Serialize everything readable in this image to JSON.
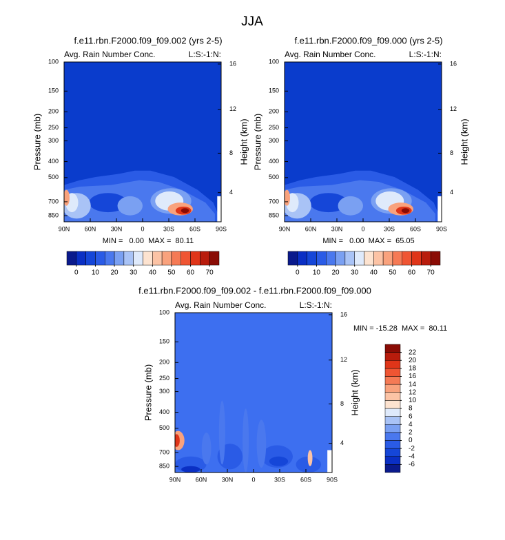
{
  "title": "JJA",
  "panels": [
    {
      "title": "f.e11.rbn.F2000.f09_f09.002 (yrs 2-5)",
      "left_label": "Avg. Rain Number Conc.",
      "right_label": "L:S:-1:N:",
      "y_label": "Pressure (mb)",
      "y2_label": "Height (km)",
      "ylim": [
        100,
        925
      ],
      "yticks": [
        100,
        150,
        200,
        250,
        300,
        400,
        500,
        700,
        850
      ],
      "y2ticks": [
        4,
        8,
        12,
        16
      ],
      "xlim": [
        90,
        -90
      ],
      "xticks": [
        {
          "value": 90,
          "label": "90N"
        },
        {
          "value": 60,
          "label": "60N"
        },
        {
          "value": 30,
          "label": "30N"
        },
        {
          "value": 0,
          "label": "0"
        },
        {
          "value": -30,
          "label": "30S"
        },
        {
          "value": -60,
          "label": "60S"
        },
        {
          "value": -90,
          "label": "90S"
        }
      ],
      "stats": "MIN =   0.00  MAX =  80.11",
      "colorbar": {
        "orientation": "horizontal",
        "range": [
          -5,
          75
        ],
        "ticks": [
          0,
          10,
          20,
          30,
          40,
          50,
          60,
          70
        ],
        "colors": [
          "#0a1a8c",
          "#0a2fc4",
          "#1546d8",
          "#2a5be6",
          "#4a78ee",
          "#7aa0f2",
          "#a9c3f6",
          "#dfeafb",
          "#fde3d0",
          "#fcc3a5",
          "#f9a27d",
          "#f57a55",
          "#ef5533",
          "#df3519",
          "#b81c0c",
          "#8a0c05"
        ]
      }
    },
    {
      "title": "f.e11.rbn.F2000.f09_f09.000 (yrs 2-5)",
      "left_label": "Avg. Rain Number Conc.",
      "right_label": "L:S:-1:N:",
      "y_label": "Pressure (mb)",
      "y2_label": "Height (km)",
      "ylim": [
        100,
        925
      ],
      "yticks": [
        100,
        150,
        200,
        250,
        300,
        400,
        500,
        700,
        850
      ],
      "y2ticks": [
        4,
        8,
        12,
        16
      ],
      "xlim": [
        90,
        -90
      ],
      "xticks": [
        {
          "value": 90,
          "label": "90N"
        },
        {
          "value": 60,
          "label": "60N"
        },
        {
          "value": 30,
          "label": "30N"
        },
        {
          "value": 0,
          "label": "0"
        },
        {
          "value": -30,
          "label": "30S"
        },
        {
          "value": -60,
          "label": "60S"
        },
        {
          "value": -90,
          "label": "90S"
        }
      ],
      "stats": "MIN =   0.00  MAX =  65.05",
      "colorbar": {
        "orientation": "horizontal",
        "range": [
          -5,
          75
        ],
        "ticks": [
          0,
          10,
          20,
          30,
          40,
          50,
          60,
          70
        ],
        "colors": [
          "#0a1a8c",
          "#0a2fc4",
          "#1546d8",
          "#2a5be6",
          "#4a78ee",
          "#7aa0f2",
          "#a9c3f6",
          "#dfeafb",
          "#fde3d0",
          "#fcc3a5",
          "#f9a27d",
          "#f57a55",
          "#ef5533",
          "#df3519",
          "#b81c0c",
          "#8a0c05"
        ]
      }
    },
    {
      "title": "f.e11.rbn.F2000.f09_f09.002 - f.e11.rbn.F2000.f09_f09.000",
      "left_label": "Avg. Rain Number Conc.",
      "right_label": "L:S:-1:N:",
      "y_label": "Pressure (mb)",
      "y2_label": "Height (km)",
      "ylim": [
        100,
        925
      ],
      "yticks": [
        100,
        150,
        200,
        250,
        300,
        400,
        500,
        700,
        850
      ],
      "y2ticks": [
        4,
        8,
        12,
        16
      ],
      "xlim": [
        90,
        -90
      ],
      "xticks": [
        {
          "value": 90,
          "label": "90N"
        },
        {
          "value": 60,
          "label": "60N"
        },
        {
          "value": 30,
          "label": "30N"
        },
        {
          "value": 0,
          "label": "0"
        },
        {
          "value": -30,
          "label": "30S"
        },
        {
          "value": -60,
          "label": "60S"
        },
        {
          "value": -90,
          "label": "90S"
        }
      ],
      "stats": "MIN = -15.28  MAX =  80.11",
      "colorbar": {
        "orientation": "vertical",
        "range": [
          -8,
          24
        ],
        "ticks": [
          -6,
          -4,
          -2,
          0,
          2,
          4,
          6,
          8,
          10,
          12,
          14,
          16,
          18,
          20,
          22
        ],
        "colors": [
          "#0a1a8c",
          "#0a2fc4",
          "#1546d8",
          "#2a5be6",
          "#4a78ee",
          "#7aa0f2",
          "#a9c3f6",
          "#dfeafb",
          "#fde3d0",
          "#fcc3a5",
          "#f9a27d",
          "#f57a55",
          "#ef5533",
          "#df3519",
          "#b81c0c",
          "#8a0c05"
        ]
      }
    }
  ]
}
